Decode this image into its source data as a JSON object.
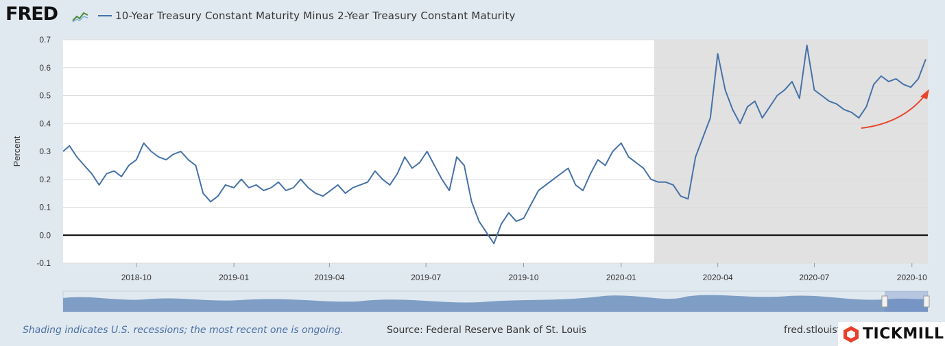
{
  "brand": {
    "logo_text": "FRED"
  },
  "legend": {
    "series_label": "10-Year Treasury Constant Maturity Minus 2-Year Treasury Constant Maturity"
  },
  "footer": {
    "note": "Shading indicates U.S. recessions; the most recent one is ongoing.",
    "source": "Source: Federal Reserve Bank of St. Louis",
    "url": "fred.stlouisf"
  },
  "watermark": {
    "text": "TICKMILL"
  },
  "colors": {
    "series": "#4572a7",
    "recession": "#e1e1e1",
    "annotation_arrow": "#e8452c"
  },
  "chart_data": {
    "type": "line",
    "title": "",
    "xlabel": "",
    "ylabel": "Percent",
    "ylim": [
      -0.1,
      0.7
    ],
    "yticks": [
      "-0.1",
      "0.0",
      "0.1",
      "0.2",
      "0.3",
      "0.4",
      "0.5",
      "0.6",
      "0.7"
    ],
    "xticks": [
      "2018-10",
      "2019-01",
      "2019-04",
      "2019-07",
      "2019-10",
      "2020-01",
      "2020-04",
      "2020-07",
      "2020-10"
    ],
    "xlim": [
      "2018-07-24",
      "2020-10-16"
    ],
    "grid": true,
    "recession_shading": {
      "start": "2020-02-01",
      "end": "2020-10-16",
      "label": "ongoing"
    },
    "reference_line": 0.0,
    "series": [
      {
        "x": [
          "2018-07-24",
          "2018-07-30",
          "2018-08-06",
          "2018-08-13",
          "2018-08-20",
          "2018-08-27",
          "2018-09-03",
          "2018-09-10",
          "2018-09-17",
          "2018-09-24",
          "2018-10-01",
          "2018-10-08",
          "2018-10-15",
          "2018-10-22",
          "2018-10-29",
          "2018-11-05",
          "2018-11-12",
          "2018-11-19",
          "2018-11-26",
          "2018-12-03",
          "2018-12-10",
          "2018-12-17",
          "2018-12-24",
          "2019-01-01",
          "2019-01-08",
          "2019-01-15",
          "2019-01-22",
          "2019-01-29",
          "2019-02-05",
          "2019-02-12",
          "2019-02-19",
          "2019-02-26",
          "2019-03-05",
          "2019-03-12",
          "2019-03-19",
          "2019-03-26",
          "2019-04-02",
          "2019-04-09",
          "2019-04-16",
          "2019-04-23",
          "2019-04-30",
          "2019-05-07",
          "2019-05-14",
          "2019-05-21",
          "2019-05-28",
          "2019-06-04",
          "2019-06-11",
          "2019-06-18",
          "2019-06-25",
          "2019-07-02",
          "2019-07-09",
          "2019-07-16",
          "2019-07-23",
          "2019-07-30",
          "2019-08-06",
          "2019-08-13",
          "2019-08-20",
          "2019-08-27",
          "2019-09-03",
          "2019-09-10",
          "2019-09-17",
          "2019-09-24",
          "2019-10-01",
          "2019-10-08",
          "2019-10-15",
          "2019-10-22",
          "2019-10-29",
          "2019-11-05",
          "2019-11-12",
          "2019-11-19",
          "2019-11-26",
          "2019-12-03",
          "2019-12-10",
          "2019-12-17",
          "2019-12-24",
          "2020-01-01",
          "2020-01-08",
          "2020-01-15",
          "2020-01-22",
          "2020-01-29",
          "2020-02-05",
          "2020-02-12",
          "2020-02-19",
          "2020-02-26",
          "2020-03-04",
          "2020-03-11",
          "2020-03-18",
          "2020-03-25",
          "2020-04-01",
          "2020-04-08",
          "2020-04-15",
          "2020-04-22",
          "2020-04-29",
          "2020-05-06",
          "2020-05-13",
          "2020-05-20",
          "2020-05-27",
          "2020-06-03",
          "2020-06-10",
          "2020-06-17",
          "2020-06-24",
          "2020-07-01",
          "2020-07-08",
          "2020-07-15",
          "2020-07-22",
          "2020-07-29",
          "2020-08-05",
          "2020-08-12",
          "2020-08-19",
          "2020-08-26",
          "2020-09-02",
          "2020-09-09",
          "2020-09-16",
          "2020-09-23",
          "2020-09-30",
          "2020-10-07",
          "2020-10-14"
        ],
        "y": [
          0.3,
          0.32,
          0.28,
          0.25,
          0.22,
          0.18,
          0.22,
          0.23,
          0.21,
          0.25,
          0.27,
          0.33,
          0.3,
          0.28,
          0.27,
          0.29,
          0.3,
          0.27,
          0.25,
          0.15,
          0.12,
          0.14,
          0.18,
          0.17,
          0.2,
          0.17,
          0.18,
          0.16,
          0.17,
          0.19,
          0.16,
          0.17,
          0.2,
          0.17,
          0.15,
          0.14,
          0.16,
          0.18,
          0.15,
          0.17,
          0.18,
          0.19,
          0.23,
          0.2,
          0.18,
          0.22,
          0.28,
          0.24,
          0.26,
          0.3,
          0.25,
          0.2,
          0.16,
          0.28,
          0.25,
          0.12,
          0.05,
          0.01,
          -0.03,
          0.04,
          0.08,
          0.05,
          0.06,
          0.11,
          0.16,
          0.18,
          0.2,
          0.22,
          0.24,
          0.18,
          0.16,
          0.22,
          0.27,
          0.25,
          0.3,
          0.33,
          0.28,
          0.26,
          0.24,
          0.2,
          0.19,
          0.19,
          0.18,
          0.14,
          0.13,
          0.28,
          0.35,
          0.42,
          0.65,
          0.52,
          0.45,
          0.4,
          0.46,
          0.48,
          0.42,
          0.46,
          0.5,
          0.52,
          0.55,
          0.49,
          0.68,
          0.52,
          0.5,
          0.48,
          0.47,
          0.45,
          0.44,
          0.42,
          0.46,
          0.54,
          0.57,
          0.55,
          0.56,
          0.54,
          0.53,
          0.56,
          0.63
        ]
      }
    ]
  }
}
